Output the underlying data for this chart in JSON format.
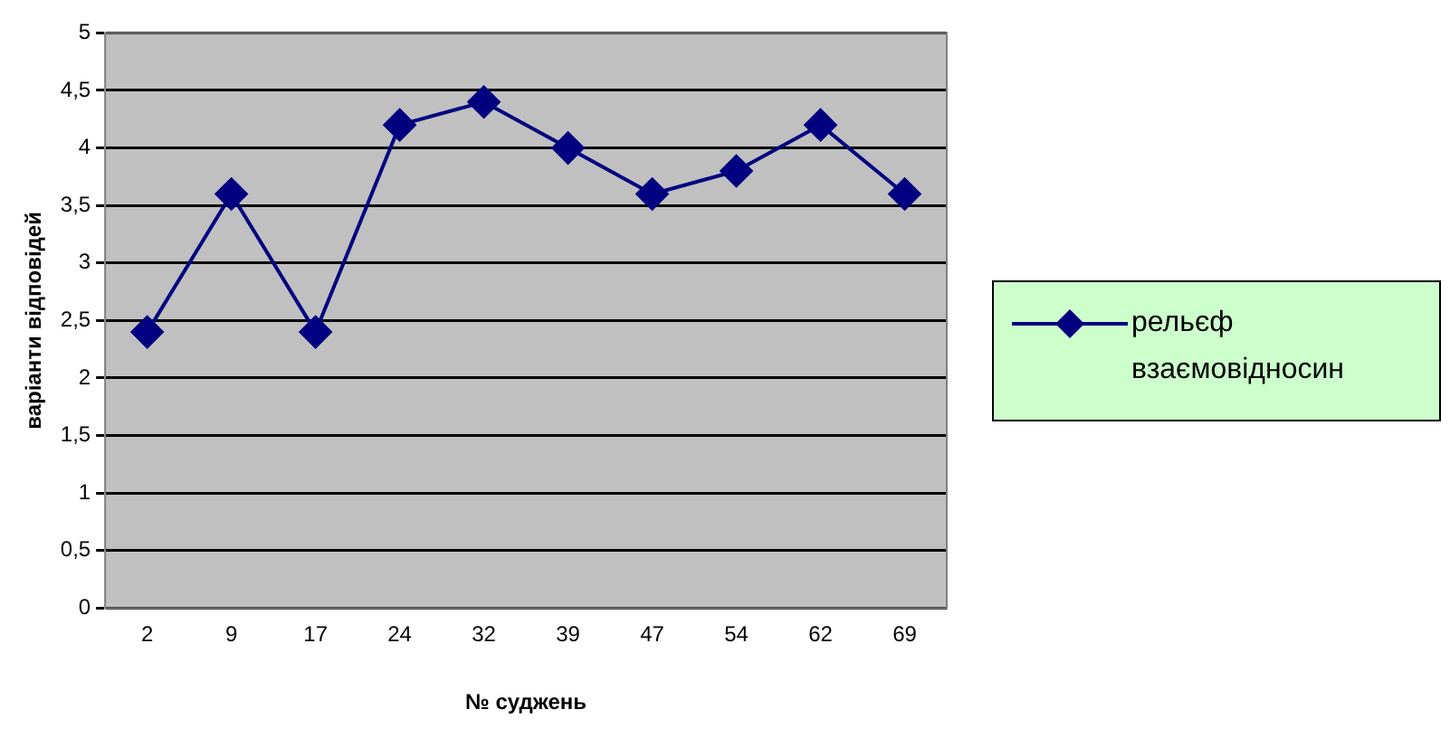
{
  "chart_data": {
    "type": "line",
    "xlabel": "№ суджень",
    "ylabel": "варіанти відповідей",
    "categories": [
      "2",
      "9",
      "17",
      "24",
      "32",
      "39",
      "47",
      "54",
      "62",
      "69"
    ],
    "series": [
      {
        "name": "рельєф взаємовідносин",
        "color": "#000080",
        "values": [
          2.4,
          3.6,
          2.4,
          4.2,
          4.4,
          4.0,
          3.6,
          3.8,
          4.2,
          3.6
        ]
      }
    ],
    "ylim": [
      0,
      5
    ],
    "yticks": [
      0,
      {
        "value": 0.5,
        "label": "0,5"
      },
      1,
      {
        "value": 1.5,
        "label": "1,5"
      },
      2,
      {
        "value": 2.5,
        "label": "2,5"
      },
      3,
      {
        "value": 3.5,
        "label": "3,5"
      },
      4,
      {
        "value": 4.5,
        "label": "4,5"
      },
      5
    ],
    "grid": "y",
    "legend": "right",
    "marker": "diamond",
    "line_style": "solid"
  }
}
